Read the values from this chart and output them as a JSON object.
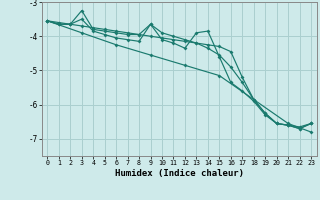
{
  "xlabel": "Humidex (Indice chaleur)",
  "background_color": "#ceeaea",
  "grid_color": "#aacfcf",
  "line_color": "#1a7a6e",
  "xlim": [
    -0.5,
    23.5
  ],
  "ylim": [
    -7.5,
    -3.0
  ],
  "yticks": [
    -7,
    -6,
    -5,
    -4,
    -3
  ],
  "xticks": [
    0,
    1,
    2,
    3,
    4,
    5,
    6,
    7,
    8,
    9,
    10,
    11,
    12,
    13,
    14,
    15,
    16,
    17,
    18,
    19,
    20,
    21,
    22,
    23
  ],
  "series": [
    [
      [
        0,
        -3.55
      ],
      [
        1,
        -3.65
      ],
      [
        2,
        -3.65
      ],
      [
        3,
        -3.25
      ],
      [
        4,
        -3.8
      ],
      [
        5,
        -3.85
      ],
      [
        6,
        -3.9
      ],
      [
        7,
        -3.95
      ],
      [
        8,
        -3.95
      ],
      [
        9,
        -3.65
      ],
      [
        10,
        -4.1
      ],
      [
        11,
        -4.2
      ],
      [
        12,
        -4.35
      ],
      [
        13,
        -3.9
      ],
      [
        14,
        -3.85
      ],
      [
        15,
        -4.6
      ],
      [
        16,
        -5.35
      ],
      [
        17,
        -5.6
      ],
      [
        18,
        -5.9
      ],
      [
        19,
        -6.3
      ],
      [
        20,
        -6.55
      ],
      [
        21,
        -6.6
      ],
      [
        22,
        -6.7
      ],
      [
        23,
        -6.55
      ]
    ],
    [
      [
        0,
        -3.55
      ],
      [
        1,
        -3.65
      ],
      [
        2,
        -3.65
      ],
      [
        3,
        -3.5
      ],
      [
        4,
        -3.85
      ],
      [
        5,
        -3.95
      ],
      [
        6,
        -4.05
      ],
      [
        7,
        -4.1
      ],
      [
        8,
        -4.15
      ],
      [
        9,
        -3.65
      ],
      [
        10,
        -3.9
      ],
      [
        11,
        -4.0
      ],
      [
        12,
        -4.1
      ],
      [
        13,
        -4.2
      ],
      [
        14,
        -4.35
      ],
      [
        15,
        -4.55
      ],
      [
        16,
        -4.9
      ],
      [
        17,
        -5.35
      ],
      [
        18,
        -5.85
      ],
      [
        19,
        -6.25
      ],
      [
        20,
        -6.55
      ],
      [
        21,
        -6.6
      ],
      [
        22,
        -6.7
      ],
      [
        23,
        -6.55
      ]
    ],
    [
      [
        0,
        -3.55
      ],
      [
        3,
        -3.9
      ],
      [
        6,
        -4.25
      ],
      [
        9,
        -4.55
      ],
      [
        12,
        -4.85
      ],
      [
        15,
        -5.15
      ],
      [
        18,
        -5.85
      ],
      [
        21,
        -6.55
      ],
      [
        23,
        -6.8
      ]
    ],
    [
      [
        0,
        -3.55
      ],
      [
        1,
        -3.6
      ],
      [
        2,
        -3.65
      ],
      [
        3,
        -3.7
      ],
      [
        4,
        -3.75
      ],
      [
        5,
        -3.8
      ],
      [
        6,
        -3.85
      ],
      [
        7,
        -3.9
      ],
      [
        8,
        -3.95
      ],
      [
        9,
        -4.0
      ],
      [
        10,
        -4.05
      ],
      [
        11,
        -4.1
      ],
      [
        12,
        -4.15
      ],
      [
        13,
        -4.2
      ],
      [
        14,
        -4.25
      ],
      [
        15,
        -4.3
      ],
      [
        16,
        -4.45
      ],
      [
        17,
        -5.2
      ],
      [
        18,
        -5.85
      ],
      [
        19,
        -6.25
      ],
      [
        20,
        -6.55
      ],
      [
        21,
        -6.6
      ],
      [
        22,
        -6.65
      ],
      [
        23,
        -6.55
      ]
    ]
  ]
}
